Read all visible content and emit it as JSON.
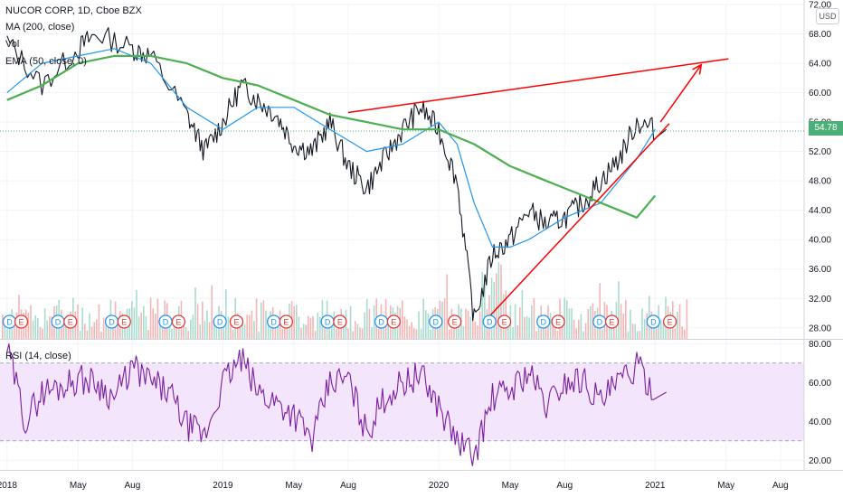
{
  "header": {
    "symbol_line": "NUCOR CORP, 1D, Cboe BZX",
    "indicators": [
      "MA (200, close)",
      "Vol",
      "EMA (50, close, 0)"
    ],
    "currency": "USD",
    "last_price": "54.78"
  },
  "rsi_panel": {
    "label": "RSI (14, close)",
    "upper_band": 70,
    "lower_band": 30
  },
  "chart_data": [
    {
      "type": "line",
      "title": "NUCOR CORP, 1D, Cboe BZX",
      "ylim": [
        26.5,
        72
      ],
      "y_ticks": [
        "28.00",
        "32.00",
        "36.00",
        "40.00",
        "44.00",
        "48.00",
        "52.00",
        "56.00",
        "60.00",
        "64.00",
        "68.00",
        "72.00"
      ],
      "x_ticks": [
        "2018",
        "May",
        "Aug",
        "2019",
        "May",
        "Aug",
        "2020",
        "May",
        "Aug",
        "2021",
        "May",
        "Aug"
      ],
      "series": [
        {
          "name": "",
          "role": "price",
          "x": [
            "2018-01",
            "2018-03",
            "2018-05",
            "2018-06",
            "2018-08",
            "2018-09",
            "2018-11",
            "2018-12",
            "2019-01",
            "2019-02",
            "2019-03",
            "2019-04",
            "2019-05",
            "2019-06",
            "2019-07",
            "2019-08",
            "2019-09",
            "2019-10",
            "2019-11",
            "2019-12",
            "2020-01",
            "2020-02",
            "2020-03",
            "2020-04",
            "2020-05",
            "2020-06",
            "2020-07",
            "2020-08",
            "2020-09",
            "2020-10",
            "2020-11",
            "2020-12",
            "2021-01"
          ],
          "values": [
            67,
            61,
            66,
            68,
            66,
            65,
            57,
            52,
            56,
            61,
            59,
            57,
            53,
            52,
            56,
            50,
            47,
            51,
            55,
            58,
            55,
            48,
            29,
            38,
            40,
            44,
            42,
            43,
            45,
            48,
            51,
            56,
            55
          ]
        },
        {
          "name": "",
          "role": "ema50",
          "x": [
            "2018-01",
            "2018-03",
            "2018-05",
            "2018-07",
            "2018-09",
            "2018-11",
            "2019-01",
            "2019-03",
            "2019-05",
            "2019-07",
            "2019-09",
            "2019-11",
            "2020-01",
            "2020-02",
            "2020-03",
            "2020-04",
            "2020-05",
            "2020-06",
            "2020-08",
            "2020-10",
            "2020-12",
            "2021-01"
          ],
          "values": [
            60,
            64,
            65,
            66,
            64,
            58,
            55,
            58,
            58,
            55,
            52,
            53,
            56,
            53,
            45,
            39,
            39,
            40,
            43,
            45,
            51,
            55
          ]
        },
        {
          "name": "",
          "role": "ma200",
          "x": [
            "2018-01",
            "2018-03",
            "2018-05",
            "2018-07",
            "2018-09",
            "2018-11",
            "2019-01",
            "2019-03",
            "2019-05",
            "2019-07",
            "2019-09",
            "2019-11",
            "2020-01",
            "2020-03",
            "2020-05",
            "2020-07",
            "2020-09",
            "2020-11",
            "2020-12",
            "2021-01"
          ],
          "values": [
            59,
            61,
            64,
            65,
            65,
            64,
            62,
            61,
            59,
            57,
            56,
            55,
            55,
            53,
            50,
            48,
            46,
            44,
            43,
            46
          ]
        }
      ],
      "trendlines": [
        {
          "from": [
            "2019-08-01",
            57.3
          ],
          "to": [
            "2021-05-05",
            64.6
          ],
          "color": "#ff0000"
        },
        {
          "from": [
            "2020-03-18",
            28.8
          ],
          "to": [
            "2021-01-25",
            55.8
          ],
          "color": "#ff0000"
        },
        {
          "from": [
            "2021-01-10",
            56.0
          ],
          "to": [
            "2021-03-20",
            63.8
          ],
          "color": "#ff0000",
          "arrow": true
        }
      ],
      "volume_ylim": [
        0,
        100
      ],
      "volume_seed": 7,
      "earnings_markers": [
        {
          "date": "2018-01-05",
          "label": "D"
        },
        {
          "date": "2018-01-25",
          "label": "E"
        },
        {
          "date": "2018-03-28",
          "label": "D"
        },
        {
          "date": "2018-04-18",
          "label": "E"
        },
        {
          "date": "2018-06-27",
          "label": "D"
        },
        {
          "date": "2018-07-18",
          "label": "E"
        },
        {
          "date": "2018-09-26",
          "label": "D"
        },
        {
          "date": "2018-10-18",
          "label": "E"
        },
        {
          "date": "2018-12-27",
          "label": "D"
        },
        {
          "date": "2019-01-24",
          "label": "E"
        },
        {
          "date": "2019-03-28",
          "label": "D"
        },
        {
          "date": "2019-04-18",
          "label": "E"
        },
        {
          "date": "2019-06-27",
          "label": "D"
        },
        {
          "date": "2019-07-18",
          "label": "E"
        },
        {
          "date": "2019-09-26",
          "label": "D"
        },
        {
          "date": "2019-10-17",
          "label": "E"
        },
        {
          "date": "2019-12-27",
          "label": "D"
        },
        {
          "date": "2020-01-28",
          "label": "E"
        },
        {
          "date": "2020-03-27",
          "label": "D"
        },
        {
          "date": "2020-04-21",
          "label": "E"
        },
        {
          "date": "2020-06-26",
          "label": "D"
        },
        {
          "date": "2020-07-21",
          "label": "E"
        },
        {
          "date": "2020-09-29",
          "label": "D"
        },
        {
          "date": "2020-10-20",
          "label": "E"
        },
        {
          "date": "2020-12-29",
          "label": "D"
        },
        {
          "date": "2021-01-26",
          "label": "E"
        }
      ]
    },
    {
      "type": "line",
      "title": "RSI (14, close)",
      "ylim": [
        15,
        82
      ],
      "y_ticks": [
        "20.00",
        "40.00",
        "60.00",
        "80.00"
      ],
      "series": [
        {
          "name": "",
          "x": [
            "2018-01",
            "2018-02",
            "2018-03",
            "2018-04",
            "2018-05",
            "2018-06",
            "2018-07",
            "2018-08",
            "2018-09",
            "2018-10",
            "2018-11",
            "2018-12",
            "2019-01",
            "2019-02",
            "2019-03",
            "2019-04",
            "2019-05",
            "2019-06",
            "2019-07",
            "2019-08",
            "2019-09",
            "2019-10",
            "2019-11",
            "2019-12",
            "2020-01",
            "2020-02",
            "2020-03",
            "2020-04",
            "2020-05",
            "2020-06",
            "2020-07",
            "2020-08",
            "2020-09",
            "2020-10",
            "2020-11",
            "2020-12",
            "2021-01"
          ],
          "values": [
            78,
            40,
            55,
            58,
            62,
            60,
            52,
            68,
            60,
            55,
            38,
            32,
            60,
            72,
            55,
            50,
            44,
            30,
            60,
            62,
            34,
            52,
            60,
            64,
            48,
            30,
            22,
            52,
            56,
            66,
            48,
            60,
            62,
            50,
            60,
            68,
            55
          ]
        }
      ]
    }
  ]
}
